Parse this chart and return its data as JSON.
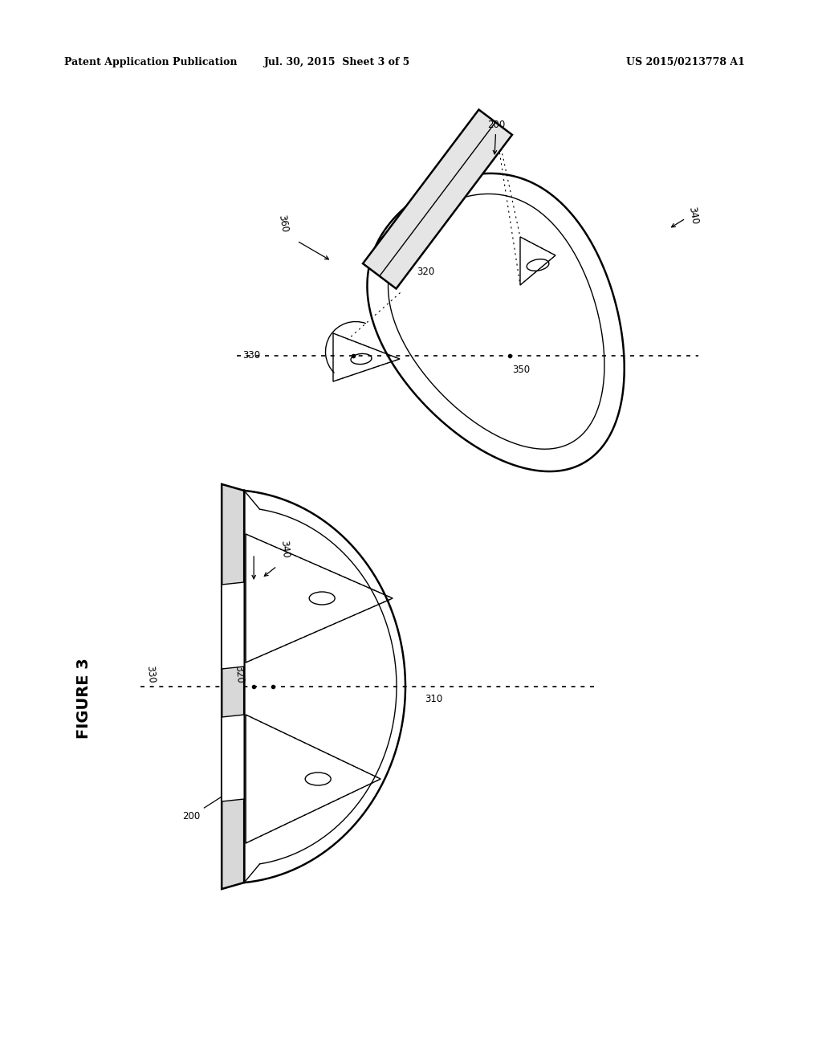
{
  "bg_color": "#ffffff",
  "line_color": "#000000",
  "header_left": "Patent Application Publication",
  "header_mid": "Jul. 30, 2015  Sheet 3 of 5",
  "header_right": "US 2015/0213778 A1",
  "figure_label": "FIGURE 3",
  "lw_thick": 1.8,
  "lw_thin": 1.0,
  "lw_dotted": 1.2,
  "label_fs": 8.5
}
